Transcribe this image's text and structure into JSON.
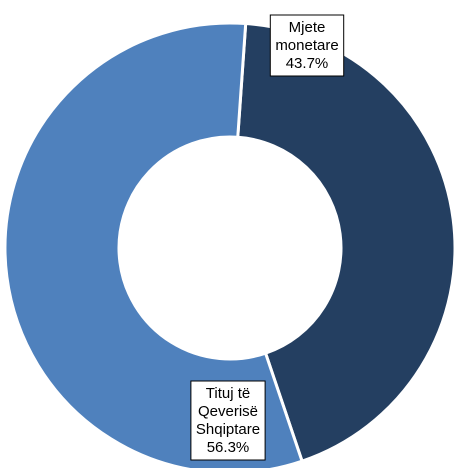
{
  "chart_data": {
    "type": "pie",
    "variant": "donut",
    "title": "",
    "categories": [
      "Mjete monetare",
      "Tituj të Qeverisë Shqiptare"
    ],
    "values": [
      43.7,
      56.3
    ],
    "value_unit": "%",
    "slices": [
      {
        "label_lines": [
          "Mjete",
          "monetare",
          "43.7%"
        ],
        "value": 43.7,
        "color": "#243F61"
      },
      {
        "label_lines": [
          "Tituj të",
          "Qeverisë",
          "Shqiptare",
          "56.3%"
        ],
        "value": 56.3,
        "color": "#4F81BD"
      }
    ],
    "legend": "none",
    "data_labels": "boxed",
    "background_color": "#FFFFFF",
    "separator_color": "#FFFFFF"
  }
}
